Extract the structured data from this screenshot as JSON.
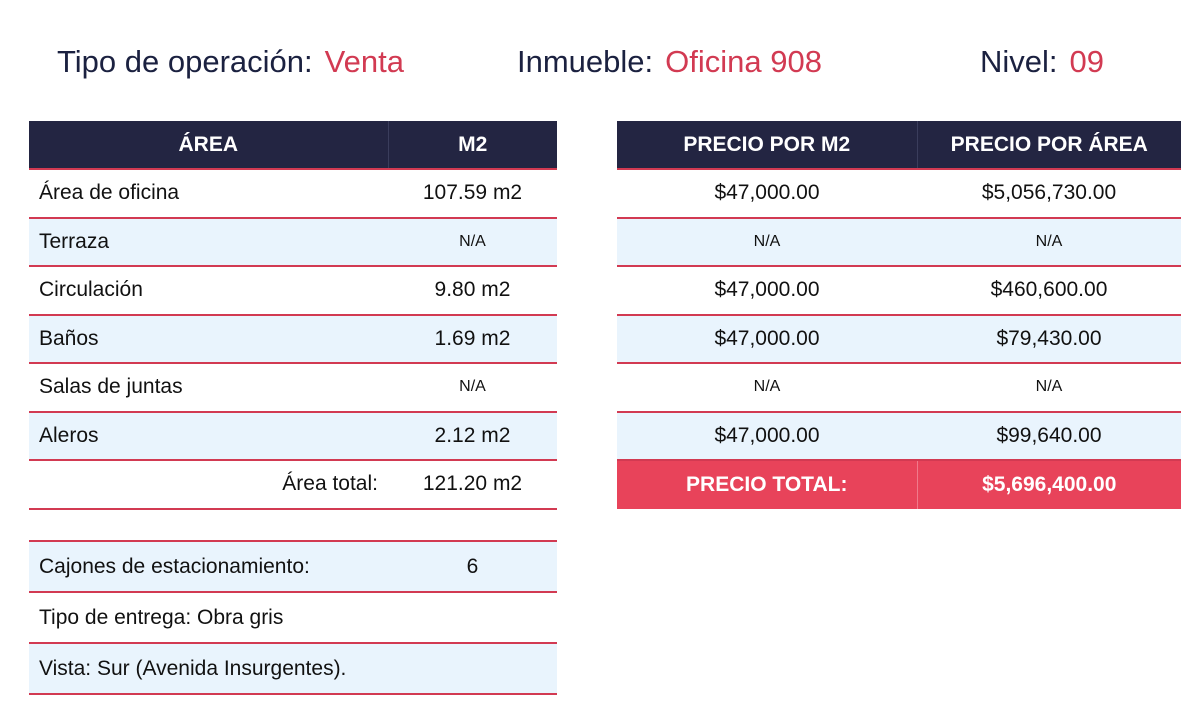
{
  "header": {
    "operation_label": "Tipo de operación:",
    "operation_value": "Venta",
    "property_label": "Inmueble:",
    "property_value": "Oficina 908",
    "level_label": "Nivel:",
    "level_value": "09"
  },
  "areas": {
    "headers": [
      "ÁREA",
      "M2"
    ],
    "rows": [
      {
        "name": "Área de oficina",
        "m2": "107.59 m2"
      },
      {
        "name": "Terraza",
        "m2": "N/A"
      },
      {
        "name": "Circulación",
        "m2": "9.80 m2"
      },
      {
        "name": "Baños",
        "m2": "1.69 m2"
      },
      {
        "name": "Salas de juntas",
        "m2": "N/A"
      },
      {
        "name": "Aleros",
        "m2": "2.12 m2"
      }
    ],
    "total_label": "Área total:",
    "total_value": "121.20 m2"
  },
  "prices": {
    "headers": [
      "PRECIO POR M2",
      "PRECIO POR ÁREA"
    ],
    "rows": [
      {
        "per_m2": "$47,000.00",
        "per_area": "$5,056,730.00"
      },
      {
        "per_m2": "N/A",
        "per_area": "N/A"
      },
      {
        "per_m2": "$47,000.00",
        "per_area": "$460,600.00"
      },
      {
        "per_m2": "$47,000.00",
        "per_area": "$79,430.00"
      },
      {
        "per_m2": "N/A",
        "per_area": "N/A"
      },
      {
        "per_m2": "$47,000.00",
        "per_area": "$99,640.00"
      }
    ],
    "total_label": "PRECIO TOTAL:",
    "total_value": "$5,696,400.00"
  },
  "info": {
    "parking_label": "Cajones de estacionamiento:",
    "parking_value": "6",
    "delivery": "Tipo de entrega: Obra gris",
    "view": "Vista: Sur (Avenida Insurgentes)."
  }
}
